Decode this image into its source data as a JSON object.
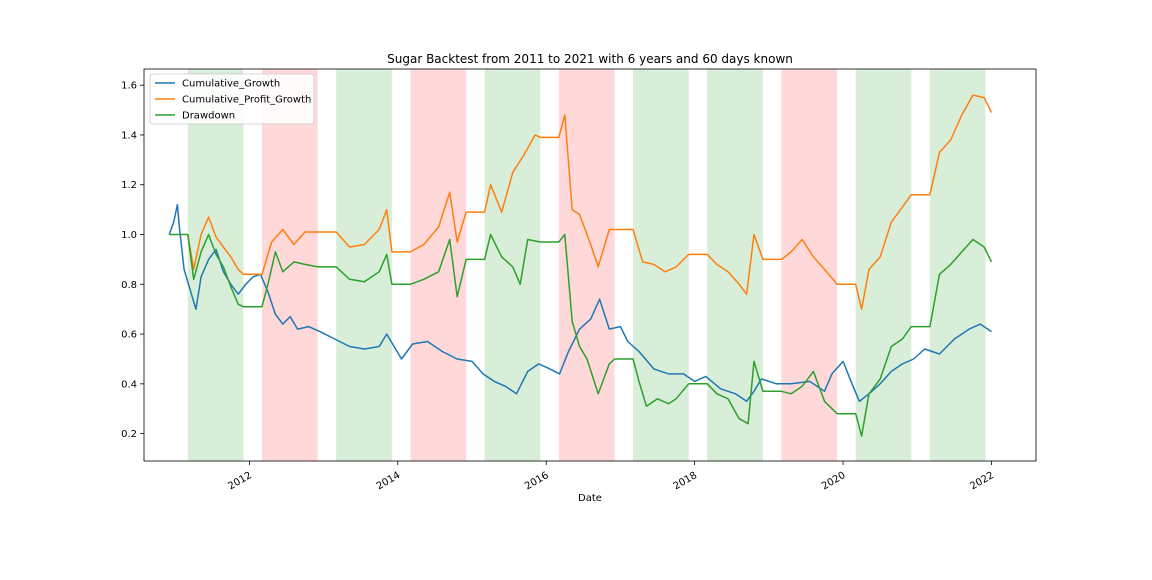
{
  "chart_data": {
    "type": "line",
    "title": "Sugar Backtest from 2011 to 2021 with 6 years and 60 days known",
    "xlabel": "Date",
    "ylabel": "",
    "xlim": [
      2010.58,
      2022.6
    ],
    "ylim": [
      0.09,
      1.665
    ],
    "x_ticks": [
      2012,
      2014,
      2016,
      2018,
      2020,
      2022
    ],
    "x_tick_labels": [
      "2012",
      "2014",
      "2016",
      "2018",
      "2020",
      "2022"
    ],
    "y_ticks": [
      0.2,
      0.4,
      0.6,
      0.8,
      1.0,
      1.2,
      1.4,
      1.6
    ],
    "y_tick_labels": [
      "0.2",
      "0.4",
      "0.6",
      "0.8",
      "1.0",
      "1.2",
      "1.4",
      "1.6"
    ],
    "grid": false,
    "legend_position": "upper-left",
    "shaded_regions": [
      {
        "start": 2011.17,
        "end": 2011.92,
        "color": "#2ca02c",
        "opacity": 0.18
      },
      {
        "start": 2012.17,
        "end": 2012.92,
        "color": "#ff0000",
        "opacity": 0.15
      },
      {
        "start": 2013.17,
        "end": 2013.92,
        "color": "#2ca02c",
        "opacity": 0.18
      },
      {
        "start": 2014.17,
        "end": 2014.92,
        "color": "#ff0000",
        "opacity": 0.15
      },
      {
        "start": 2015.17,
        "end": 2015.92,
        "color": "#2ca02c",
        "opacity": 0.18
      },
      {
        "start": 2016.17,
        "end": 2016.92,
        "color": "#ff0000",
        "opacity": 0.15
      },
      {
        "start": 2017.17,
        "end": 2017.92,
        "color": "#2ca02c",
        "opacity": 0.18
      },
      {
        "start": 2018.17,
        "end": 2018.92,
        "color": "#2ca02c",
        "opacity": 0.18
      },
      {
        "start": 2019.17,
        "end": 2019.92,
        "color": "#ff0000",
        "opacity": 0.15
      },
      {
        "start": 2020.17,
        "end": 2020.92,
        "color": "#2ca02c",
        "opacity": 0.18
      },
      {
        "start": 2021.17,
        "end": 2021.92,
        "color": "#2ca02c",
        "opacity": 0.18
      }
    ],
    "series": [
      {
        "name": "Cumulative_Growth",
        "color": "#1f77b4",
        "points": [
          [
            2010.92,
            1.0
          ],
          [
            2010.98,
            1.05
          ],
          [
            2011.03,
            1.12
          ],
          [
            2011.06,
            1.02
          ],
          [
            2011.12,
            0.86
          ],
          [
            2011.2,
            0.78
          ],
          [
            2011.28,
            0.7
          ],
          [
            2011.35,
            0.83
          ],
          [
            2011.45,
            0.9
          ],
          [
            2011.55,
            0.94
          ],
          [
            2011.65,
            0.85
          ],
          [
            2011.75,
            0.8
          ],
          [
            2011.85,
            0.76
          ],
          [
            2011.95,
            0.8
          ],
          [
            2012.05,
            0.83
          ],
          [
            2012.15,
            0.84
          ],
          [
            2012.25,
            0.77
          ],
          [
            2012.35,
            0.68
          ],
          [
            2012.45,
            0.64
          ],
          [
            2012.55,
            0.67
          ],
          [
            2012.65,
            0.62
          ],
          [
            2012.8,
            0.63
          ],
          [
            2012.95,
            0.61
          ],
          [
            2013.15,
            0.58
          ],
          [
            2013.35,
            0.55
          ],
          [
            2013.55,
            0.54
          ],
          [
            2013.75,
            0.55
          ],
          [
            2013.85,
            0.6
          ],
          [
            2013.95,
            0.55
          ],
          [
            2014.05,
            0.5
          ],
          [
            2014.2,
            0.56
          ],
          [
            2014.4,
            0.57
          ],
          [
            2014.6,
            0.53
          ],
          [
            2014.8,
            0.5
          ],
          [
            2015.0,
            0.49
          ],
          [
            2015.15,
            0.44
          ],
          [
            2015.3,
            0.41
          ],
          [
            2015.45,
            0.39
          ],
          [
            2015.6,
            0.36
          ],
          [
            2015.75,
            0.45
          ],
          [
            2015.9,
            0.48
          ],
          [
            2016.05,
            0.46
          ],
          [
            2016.18,
            0.44
          ],
          [
            2016.3,
            0.53
          ],
          [
            2016.45,
            0.62
          ],
          [
            2016.6,
            0.66
          ],
          [
            2016.72,
            0.74
          ],
          [
            2016.85,
            0.62
          ],
          [
            2017.0,
            0.63
          ],
          [
            2017.1,
            0.57
          ],
          [
            2017.25,
            0.53
          ],
          [
            2017.45,
            0.46
          ],
          [
            2017.65,
            0.44
          ],
          [
            2017.85,
            0.44
          ],
          [
            2018.0,
            0.41
          ],
          [
            2018.15,
            0.43
          ],
          [
            2018.35,
            0.38
          ],
          [
            2018.55,
            0.36
          ],
          [
            2018.7,
            0.33
          ],
          [
            2018.8,
            0.37
          ],
          [
            2018.9,
            0.42
          ],
          [
            2019.1,
            0.4
          ],
          [
            2019.3,
            0.4
          ],
          [
            2019.55,
            0.41
          ],
          [
            2019.75,
            0.37
          ],
          [
            2019.85,
            0.44
          ],
          [
            2020.0,
            0.49
          ],
          [
            2020.12,
            0.4
          ],
          [
            2020.22,
            0.33
          ],
          [
            2020.35,
            0.36
          ],
          [
            2020.5,
            0.4
          ],
          [
            2020.65,
            0.45
          ],
          [
            2020.8,
            0.48
          ],
          [
            2020.95,
            0.5
          ],
          [
            2021.1,
            0.54
          ],
          [
            2021.3,
            0.52
          ],
          [
            2021.5,
            0.58
          ],
          [
            2021.7,
            0.62
          ],
          [
            2021.85,
            0.64
          ],
          [
            2022.0,
            0.61
          ]
        ]
      },
      {
        "name": "Cumulative_Profit_Growth",
        "color": "#ff7f0e",
        "points": [
          [
            2011.17,
            1.0
          ],
          [
            2011.25,
            0.86
          ],
          [
            2011.35,
            1.0
          ],
          [
            2011.45,
            1.07
          ],
          [
            2011.55,
            0.99
          ],
          [
            2011.65,
            0.95
          ],
          [
            2011.75,
            0.91
          ],
          [
            2011.85,
            0.86
          ],
          [
            2011.92,
            0.84
          ],
          [
            2012.17,
            0.84
          ],
          [
            2012.3,
            0.97
          ],
          [
            2012.45,
            1.02
          ],
          [
            2012.6,
            0.96
          ],
          [
            2012.75,
            1.01
          ],
          [
            2012.92,
            1.01
          ],
          [
            2013.17,
            1.01
          ],
          [
            2013.35,
            0.95
          ],
          [
            2013.55,
            0.96
          ],
          [
            2013.75,
            1.02
          ],
          [
            2013.85,
            1.1
          ],
          [
            2013.92,
            0.93
          ],
          [
            2014.17,
            0.93
          ],
          [
            2014.35,
            0.96
          ],
          [
            2014.55,
            1.03
          ],
          [
            2014.7,
            1.17
          ],
          [
            2014.8,
            0.97
          ],
          [
            2014.92,
            1.09
          ],
          [
            2015.17,
            1.09
          ],
          [
            2015.25,
            1.2
          ],
          [
            2015.4,
            1.09
          ],
          [
            2015.55,
            1.25
          ],
          [
            2015.7,
            1.32
          ],
          [
            2015.85,
            1.4
          ],
          [
            2015.92,
            1.39
          ],
          [
            2016.17,
            1.39
          ],
          [
            2016.25,
            1.48
          ],
          [
            2016.35,
            1.1
          ],
          [
            2016.45,
            1.08
          ],
          [
            2016.6,
            0.96
          ],
          [
            2016.7,
            0.87
          ],
          [
            2016.85,
            1.02
          ],
          [
            2016.92,
            1.02
          ],
          [
            2017.17,
            1.02
          ],
          [
            2017.3,
            0.89
          ],
          [
            2017.45,
            0.88
          ],
          [
            2017.6,
            0.85
          ],
          [
            2017.75,
            0.87
          ],
          [
            2017.92,
            0.92
          ],
          [
            2018.17,
            0.92
          ],
          [
            2018.3,
            0.88
          ],
          [
            2018.45,
            0.85
          ],
          [
            2018.6,
            0.8
          ],
          [
            2018.7,
            0.76
          ],
          [
            2018.8,
            1.0
          ],
          [
            2018.92,
            0.9
          ],
          [
            2019.17,
            0.9
          ],
          [
            2019.3,
            0.93
          ],
          [
            2019.45,
            0.98
          ],
          [
            2019.6,
            0.91
          ],
          [
            2019.75,
            0.86
          ],
          [
            2019.92,
            0.8
          ],
          [
            2020.17,
            0.8
          ],
          [
            2020.25,
            0.7
          ],
          [
            2020.35,
            0.86
          ],
          [
            2020.5,
            0.91
          ],
          [
            2020.65,
            1.05
          ],
          [
            2020.8,
            1.11
          ],
          [
            2020.92,
            1.16
          ],
          [
            2021.17,
            1.16
          ],
          [
            2021.3,
            1.33
          ],
          [
            2021.45,
            1.38
          ],
          [
            2021.6,
            1.48
          ],
          [
            2021.75,
            1.56
          ],
          [
            2021.9,
            1.55
          ],
          [
            2022.0,
            1.49
          ]
        ]
      },
      {
        "name": "Drawdown",
        "color": "#2ca02c",
        "points": [
          [
            2010.92,
            1.0
          ],
          [
            2011.17,
            1.0
          ],
          [
            2011.25,
            0.82
          ],
          [
            2011.35,
            0.93
          ],
          [
            2011.45,
            1.0
          ],
          [
            2011.55,
            0.92
          ],
          [
            2011.65,
            0.87
          ],
          [
            2011.75,
            0.79
          ],
          [
            2011.85,
            0.72
          ],
          [
            2011.92,
            0.71
          ],
          [
            2012.17,
            0.71
          ],
          [
            2012.25,
            0.8
          ],
          [
            2012.35,
            0.93
          ],
          [
            2012.45,
            0.85
          ],
          [
            2012.6,
            0.89
          ],
          [
            2012.75,
            0.88
          ],
          [
            2012.92,
            0.87
          ],
          [
            2013.17,
            0.87
          ],
          [
            2013.35,
            0.82
          ],
          [
            2013.55,
            0.81
          ],
          [
            2013.75,
            0.85
          ],
          [
            2013.85,
            0.92
          ],
          [
            2013.92,
            0.8
          ],
          [
            2014.17,
            0.8
          ],
          [
            2014.35,
            0.82
          ],
          [
            2014.55,
            0.85
          ],
          [
            2014.7,
            0.98
          ],
          [
            2014.8,
            0.75
          ],
          [
            2014.92,
            0.9
          ],
          [
            2015.17,
            0.9
          ],
          [
            2015.25,
            1.0
          ],
          [
            2015.4,
            0.91
          ],
          [
            2015.55,
            0.87
          ],
          [
            2015.65,
            0.8
          ],
          [
            2015.75,
            0.98
          ],
          [
            2015.92,
            0.97
          ],
          [
            2016.17,
            0.97
          ],
          [
            2016.25,
            1.0
          ],
          [
            2016.35,
            0.65
          ],
          [
            2016.45,
            0.55
          ],
          [
            2016.55,
            0.5
          ],
          [
            2016.7,
            0.36
          ],
          [
            2016.85,
            0.48
          ],
          [
            2016.92,
            0.5
          ],
          [
            2017.17,
            0.5
          ],
          [
            2017.25,
            0.41
          ],
          [
            2017.35,
            0.31
          ],
          [
            2017.5,
            0.34
          ],
          [
            2017.65,
            0.32
          ],
          [
            2017.75,
            0.34
          ],
          [
            2017.92,
            0.4
          ],
          [
            2018.17,
            0.4
          ],
          [
            2018.3,
            0.36
          ],
          [
            2018.45,
            0.34
          ],
          [
            2018.6,
            0.26
          ],
          [
            2018.72,
            0.24
          ],
          [
            2018.8,
            0.49
          ],
          [
            2018.92,
            0.37
          ],
          [
            2019.17,
            0.37
          ],
          [
            2019.3,
            0.36
          ],
          [
            2019.45,
            0.39
          ],
          [
            2019.6,
            0.45
          ],
          [
            2019.75,
            0.33
          ],
          [
            2019.92,
            0.28
          ],
          [
            2020.17,
            0.28
          ],
          [
            2020.25,
            0.19
          ],
          [
            2020.35,
            0.36
          ],
          [
            2020.5,
            0.42
          ],
          [
            2020.65,
            0.55
          ],
          [
            2020.8,
            0.58
          ],
          [
            2020.92,
            0.63
          ],
          [
            2021.17,
            0.63
          ],
          [
            2021.3,
            0.84
          ],
          [
            2021.45,
            0.88
          ],
          [
            2021.6,
            0.93
          ],
          [
            2021.75,
            0.98
          ],
          [
            2021.9,
            0.95
          ],
          [
            2022.0,
            0.89
          ]
        ]
      }
    ]
  }
}
